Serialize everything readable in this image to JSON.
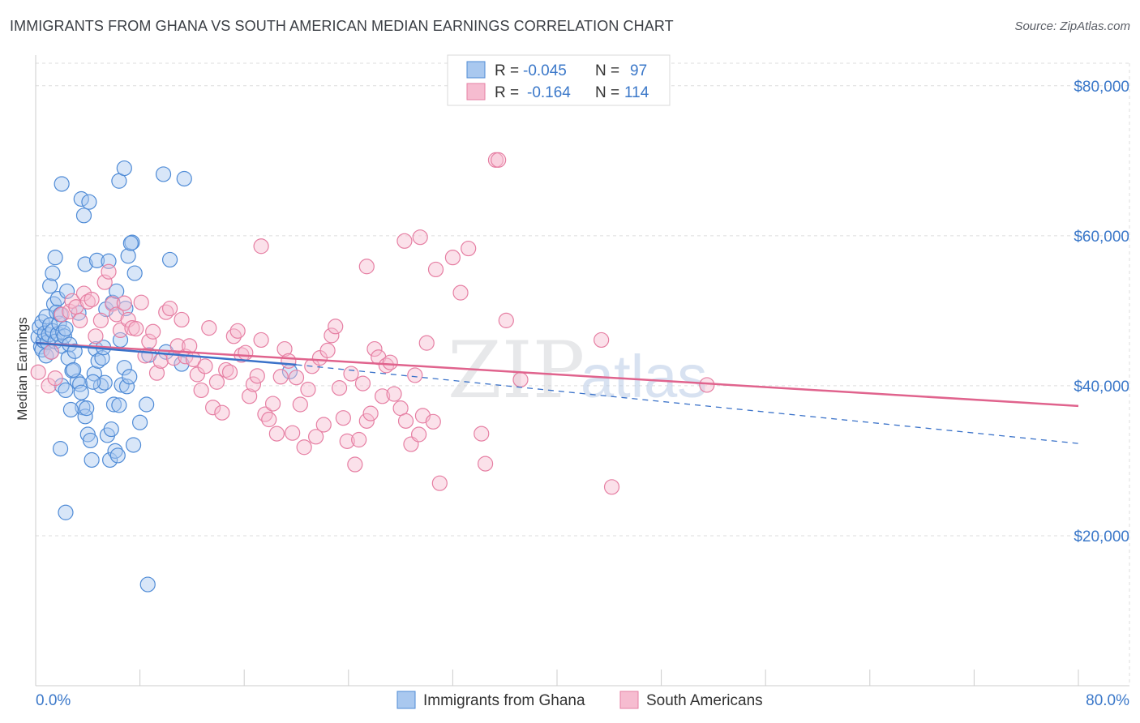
{
  "header": {
    "title": "IMMIGRANTS FROM GHANA VS SOUTH AMERICAN MEDIAN EARNINGS CORRELATION CHART",
    "source": "Source: ZipAtlas.com"
  },
  "watermark": {
    "zip": "ZIP",
    "atlas": "atlas"
  },
  "legend": {
    "rows": [
      {
        "r_label": "R =",
        "r_value": "-0.045",
        "n_label": "N =",
        "n_value": "97"
      },
      {
        "r_label": "R =",
        "r_value": "-0.164",
        "n_label": "N =",
        "n_value": "114"
      }
    ]
  },
  "bottom_legend": {
    "items": [
      "Immigrants from Ghana",
      "South Americans"
    ]
  },
  "colors": {
    "blue_fill": "#a9c8ef",
    "blue_stroke": "#4f8bd6",
    "blue_line": "#3a72c9",
    "pink_fill": "#f6bcd0",
    "pink_stroke": "#e67fa3",
    "pink_line": "#e0638d",
    "grid": "#dddddd",
    "tick_text": "#3b78c9"
  },
  "chart_data": {
    "type": "scatter",
    "title": "IMMIGRANTS FROM GHANA VS SOUTH AMERICAN MEDIAN EARNINGS CORRELATION CHART",
    "xlabel": "",
    "ylabel": "Median Earnings",
    "xlim": [
      0,
      80
    ],
    "ylim": [
      0,
      83000
    ],
    "x_tick_labels": [
      "0.0%",
      "80.0%"
    ],
    "y_ticks": [
      20000,
      40000,
      60000,
      80000
    ],
    "y_tick_labels": [
      "$20,000",
      "$40,000",
      "$60,000",
      "$80,000"
    ],
    "grid": true,
    "legend_position": "top-center",
    "series": [
      {
        "name": "Immigrants from Ghana",
        "color": "#4f8bd6",
        "r": -0.045,
        "n": 97,
        "trend_solid": [
          [
            0,
            45700
          ],
          [
            20,
            42800
          ]
        ],
        "trend_dashed": [
          [
            20,
            42800
          ],
          [
            80,
            32300
          ]
        ],
        "points": [
          [
            0.2,
            46500
          ],
          [
            0.3,
            47800
          ],
          [
            0.4,
            45200
          ],
          [
            0.5,
            44800
          ],
          [
            0.5,
            48500
          ],
          [
            0.6,
            46000
          ],
          [
            0.7,
            47000
          ],
          [
            0.8,
            44000
          ],
          [
            0.8,
            49200
          ],
          [
            0.9,
            45800
          ],
          [
            1.0,
            46800
          ],
          [
            1.1,
            48100
          ],
          [
            1.2,
            44500
          ],
          [
            1.3,
            47300
          ],
          [
            1.4,
            50900
          ],
          [
            1.5,
            45900
          ],
          [
            1.6,
            49800
          ],
          [
            1.7,
            46900
          ],
          [
            1.8,
            48300
          ],
          [
            2.0,
            45300
          ],
          [
            2.1,
            47100
          ],
          [
            1.1,
            53300
          ],
          [
            1.3,
            55000
          ],
          [
            1.5,
            57100
          ],
          [
            1.7,
            51600
          ],
          [
            1.9,
            49500
          ],
          [
            2.2,
            46600
          ],
          [
            2.3,
            47600
          ],
          [
            2.5,
            43700
          ],
          [
            2.6,
            45500
          ],
          [
            2.8,
            42000
          ],
          [
            3.0,
            44600
          ],
          [
            3.2,
            40600
          ],
          [
            3.4,
            40200
          ],
          [
            3.5,
            39100
          ],
          [
            3.6,
            37100
          ],
          [
            3.8,
            35900
          ],
          [
            4.0,
            33500
          ],
          [
            4.2,
            32700
          ],
          [
            4.3,
            30100
          ],
          [
            4.5,
            41600
          ],
          [
            4.6,
            44900
          ],
          [
            4.8,
            43300
          ],
          [
            5.0,
            40000
          ],
          [
            5.1,
            43700
          ],
          [
            5.2,
            45100
          ],
          [
            5.3,
            40400
          ],
          [
            5.5,
            33400
          ],
          [
            5.7,
            30100
          ],
          [
            5.8,
            34200
          ],
          [
            6.0,
            37500
          ],
          [
            6.1,
            31300
          ],
          [
            6.3,
            30700
          ],
          [
            6.4,
            37400
          ],
          [
            6.6,
            40100
          ],
          [
            6.8,
            42400
          ],
          [
            7.0,
            39900
          ],
          [
            7.2,
            41200
          ],
          [
            7.5,
            32100
          ],
          [
            8.0,
            35100
          ],
          [
            8.5,
            37500
          ],
          [
            2.4,
            52600
          ],
          [
            3.3,
            49700
          ],
          [
            3.5,
            64900
          ],
          [
            3.7,
            62700
          ],
          [
            3.8,
            56200
          ],
          [
            4.1,
            64500
          ],
          [
            4.7,
            56700
          ],
          [
            5.4,
            50200
          ],
          [
            5.6,
            56600
          ],
          [
            5.9,
            51100
          ],
          [
            6.2,
            52600
          ],
          [
            6.5,
            46100
          ],
          [
            6.9,
            50300
          ],
          [
            7.1,
            57300
          ],
          [
            7.4,
            59100
          ],
          [
            7.6,
            55000
          ],
          [
            4.4,
            40500
          ],
          [
            2.9,
            42100
          ],
          [
            3.9,
            37000
          ],
          [
            1.9,
            31600
          ],
          [
            2.0,
            40000
          ],
          [
            2.7,
            36800
          ],
          [
            2.3,
            39400
          ],
          [
            2.0,
            66900
          ],
          [
            6.4,
            67300
          ],
          [
            6.8,
            69000
          ],
          [
            7.3,
            59000
          ],
          [
            9.8,
            68200
          ],
          [
            11.4,
            67600
          ],
          [
            10.3,
            56800
          ],
          [
            11.2,
            42900
          ],
          [
            10.0,
            44500
          ],
          [
            8.7,
            44100
          ],
          [
            19.5,
            41900
          ],
          [
            2.3,
            23100
          ],
          [
            8.6,
            13500
          ]
        ]
      },
      {
        "name": "South Americans",
        "color": "#e67fa3",
        "r": -0.164,
        "n": 114,
        "trend_solid": [
          [
            0,
            45700
          ],
          [
            80,
            37300
          ]
        ],
        "points": [
          [
            0.2,
            41800
          ],
          [
            1.0,
            40000
          ],
          [
            1.2,
            44500
          ],
          [
            1.5,
            41000
          ],
          [
            2.0,
            49500
          ],
          [
            2.6,
            49900
          ],
          [
            2.8,
            51300
          ],
          [
            3.1,
            50500
          ],
          [
            3.4,
            48700
          ],
          [
            3.7,
            52300
          ],
          [
            4.0,
            51200
          ],
          [
            4.3,
            51500
          ],
          [
            4.6,
            46600
          ],
          [
            5.0,
            48700
          ],
          [
            5.3,
            53800
          ],
          [
            5.6,
            55200
          ],
          [
            5.9,
            50900
          ],
          [
            6.2,
            49500
          ],
          [
            6.5,
            47400
          ],
          [
            6.8,
            51000
          ],
          [
            7.1,
            48800
          ],
          [
            7.4,
            47700
          ],
          [
            7.7,
            47600
          ],
          [
            8.1,
            51100
          ],
          [
            8.4,
            44000
          ],
          [
            8.7,
            45900
          ],
          [
            9.0,
            47200
          ],
          [
            9.3,
            41700
          ],
          [
            9.6,
            43300
          ],
          [
            10.0,
            49800
          ],
          [
            10.3,
            50300
          ],
          [
            10.6,
            43700
          ],
          [
            10.9,
            45300
          ],
          [
            11.2,
            48800
          ],
          [
            11.5,
            43900
          ],
          [
            11.8,
            45300
          ],
          [
            12.1,
            43500
          ],
          [
            12.4,
            41500
          ],
          [
            12.7,
            39400
          ],
          [
            13.0,
            42600
          ],
          [
            13.3,
            47700
          ],
          [
            13.6,
            37100
          ],
          [
            13.9,
            40500
          ],
          [
            14.3,
            36400
          ],
          [
            14.6,
            42100
          ],
          [
            14.9,
            41800
          ],
          [
            15.2,
            46600
          ],
          [
            15.5,
            47300
          ],
          [
            15.8,
            44100
          ],
          [
            16.1,
            44400
          ],
          [
            16.4,
            38600
          ],
          [
            16.7,
            40200
          ],
          [
            17.0,
            41300
          ],
          [
            17.3,
            46100
          ],
          [
            17.6,
            36200
          ],
          [
            17.9,
            35500
          ],
          [
            18.2,
            37600
          ],
          [
            18.5,
            33600
          ],
          [
            18.8,
            41200
          ],
          [
            19.1,
            44900
          ],
          [
            19.4,
            43300
          ],
          [
            19.7,
            33700
          ],
          [
            20.0,
            41100
          ],
          [
            20.3,
            37500
          ],
          [
            20.6,
            31800
          ],
          [
            20.9,
            39500
          ],
          [
            21.2,
            42600
          ],
          [
            21.5,
            33200
          ],
          [
            21.8,
            43700
          ],
          [
            22.1,
            34800
          ],
          [
            22.4,
            44700
          ],
          [
            22.7,
            46700
          ],
          [
            23.0,
            47900
          ],
          [
            23.3,
            39700
          ],
          [
            23.6,
            35700
          ],
          [
            23.9,
            32600
          ],
          [
            24.2,
            41600
          ],
          [
            24.5,
            29500
          ],
          [
            24.8,
            32800
          ],
          [
            25.1,
            40300
          ],
          [
            25.4,
            35300
          ],
          [
            25.7,
            36300
          ],
          [
            26.0,
            44900
          ],
          [
            26.3,
            43800
          ],
          [
            26.6,
            38600
          ],
          [
            26.9,
            42700
          ],
          [
            27.2,
            43100
          ],
          [
            27.5,
            38900
          ],
          [
            28.0,
            37000
          ],
          [
            28.4,
            35300
          ],
          [
            28.8,
            32200
          ],
          [
            29.1,
            41400
          ],
          [
            29.4,
            33500
          ],
          [
            29.7,
            36000
          ],
          [
            30.0,
            45700
          ],
          [
            30.5,
            35200
          ],
          [
            31.0,
            27000
          ],
          [
            32.0,
            57100
          ],
          [
            32.6,
            52400
          ],
          [
            33.2,
            58300
          ],
          [
            34.5,
            29600
          ],
          [
            34.2,
            33600
          ],
          [
            35.3,
            70100
          ],
          [
            35.5,
            70100
          ],
          [
            36.1,
            48700
          ],
          [
            37.2,
            40800
          ],
          [
            43.4,
            46100
          ],
          [
            44.2,
            26500
          ],
          [
            51.5,
            40100
          ],
          [
            25.4,
            55900
          ],
          [
            28.3,
            59300
          ],
          [
            29.5,
            59800
          ],
          [
            30.7,
            55500
          ],
          [
            17.3,
            58600
          ]
        ]
      }
    ]
  }
}
